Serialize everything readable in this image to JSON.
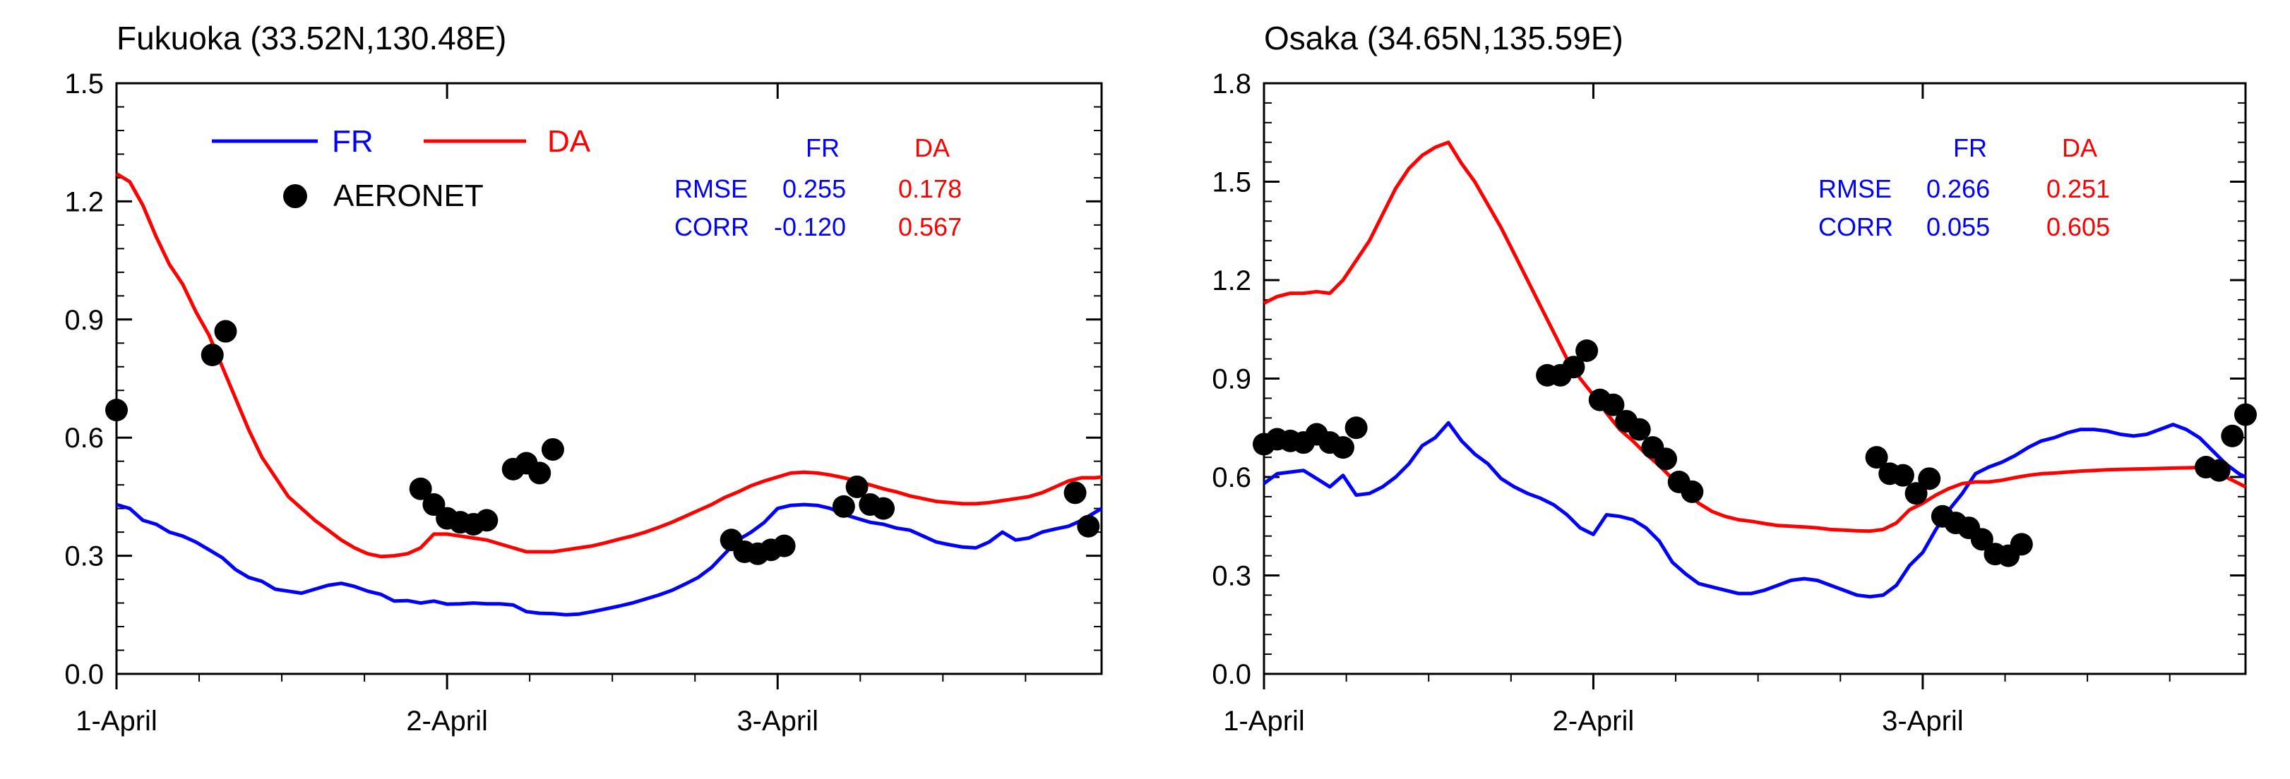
{
  "chart_data": [
    {
      "type": "line",
      "title": "Fukuoka (33.52N,130.48E)",
      "xlabel": "",
      "ylabel": "",
      "x_range": [
        1.0,
        3.98
      ],
      "ylim": [
        0.0,
        1.5
      ],
      "yticks": [
        0.0,
        0.3,
        0.6,
        0.9,
        1.2,
        1.5
      ],
      "ytick_labels": [
        "0.0",
        "0.3",
        "0.6",
        "0.9",
        "1.2",
        "1.5"
      ],
      "xticks": [
        1,
        2,
        3
      ],
      "xtick_labels": [
        "1-April",
        "2-April",
        "3-April"
      ],
      "legend": {
        "position": "top-left",
        "entries": [
          {
            "name": "FR",
            "color": "#0000ff",
            "kind": "line"
          },
          {
            "name": "DA",
            "color": "#ff0000",
            "kind": "line"
          },
          {
            "name": "AERONET",
            "color": "#000000",
            "kind": "marker"
          }
        ]
      },
      "stats": {
        "col_fr": "FR",
        "col_da": "DA",
        "rmse_label": "RMSE",
        "corr_label": "CORR",
        "rmse_fr": "0.255",
        "rmse_da": "0.178",
        "corr_fr": "-0.120",
        "corr_da": "0.567"
      },
      "series": [
        {
          "name": "FR",
          "color": "#0000ff",
          "x": [
            1.0,
            1.04,
            1.08,
            1.12,
            1.16,
            1.2,
            1.24,
            1.28,
            1.32,
            1.36,
            1.4,
            1.44,
            1.48,
            1.52,
            1.56,
            1.6,
            1.64,
            1.68,
            1.72,
            1.76,
            1.8,
            1.84,
            1.88,
            1.92,
            1.96,
            2.0,
            2.04,
            2.08,
            2.12,
            2.16,
            2.2,
            2.24,
            2.28,
            2.32,
            2.36,
            2.4,
            2.44,
            2.48,
            2.52,
            2.56,
            2.6,
            2.64,
            2.68,
            2.72,
            2.76,
            2.8,
            2.84,
            2.88,
            2.92,
            2.96,
            3.0,
            3.04,
            3.08,
            3.12,
            3.16,
            3.2,
            3.24,
            3.28,
            3.32,
            3.36,
            3.4,
            3.44,
            3.48,
            3.52,
            3.56,
            3.6,
            3.64,
            3.68,
            3.72,
            3.76,
            3.8,
            3.84,
            3.88,
            3.92,
            3.96,
            3.98
          ],
          "values": [
            0.43,
            0.42,
            0.39,
            0.38,
            0.36,
            0.35,
            0.335,
            0.315,
            0.295,
            0.265,
            0.245,
            0.235,
            0.215,
            0.21,
            0.205,
            0.215,
            0.225,
            0.23,
            0.222,
            0.21,
            0.202,
            0.185,
            0.186,
            0.18,
            0.185,
            0.177,
            0.178,
            0.18,
            0.178,
            0.178,
            0.175,
            0.158,
            0.154,
            0.153,
            0.15,
            0.152,
            0.158,
            0.165,
            0.172,
            0.18,
            0.19,
            0.2,
            0.212,
            0.228,
            0.245,
            0.27,
            0.305,
            0.34,
            0.36,
            0.385,
            0.42,
            0.428,
            0.43,
            0.428,
            0.42,
            0.405,
            0.395,
            0.385,
            0.38,
            0.37,
            0.365,
            0.35,
            0.335,
            0.328,
            0.322,
            0.32,
            0.335,
            0.36,
            0.34,
            0.345,
            0.36,
            0.368,
            0.375,
            0.39,
            0.41,
            0.42
          ]
        },
        {
          "name": "DA",
          "color": "#ff0000",
          "x": [
            1.0,
            1.04,
            1.08,
            1.12,
            1.16,
            1.2,
            1.24,
            1.28,
            1.32,
            1.36,
            1.4,
            1.44,
            1.48,
            1.52,
            1.56,
            1.6,
            1.64,
            1.68,
            1.72,
            1.76,
            1.8,
            1.84,
            1.88,
            1.92,
            1.96,
            2.0,
            2.04,
            2.08,
            2.12,
            2.16,
            2.2,
            2.24,
            2.28,
            2.32,
            2.36,
            2.4,
            2.44,
            2.48,
            2.52,
            2.56,
            2.6,
            2.64,
            2.68,
            2.72,
            2.76,
            2.8,
            2.84,
            2.88,
            2.92,
            2.96,
            3.0,
            3.04,
            3.08,
            3.12,
            3.16,
            3.2,
            3.24,
            3.28,
            3.32,
            3.36,
            3.4,
            3.44,
            3.48,
            3.52,
            3.56,
            3.6,
            3.64,
            3.68,
            3.72,
            3.76,
            3.8,
            3.84,
            3.88,
            3.92,
            3.96,
            3.98
          ],
          "values": [
            1.27,
            1.25,
            1.19,
            1.11,
            1.04,
            0.99,
            0.92,
            0.86,
            0.78,
            0.7,
            0.62,
            0.55,
            0.5,
            0.45,
            0.42,
            0.39,
            0.365,
            0.34,
            0.32,
            0.305,
            0.298,
            0.3,
            0.305,
            0.32,
            0.355,
            0.355,
            0.35,
            0.345,
            0.34,
            0.33,
            0.32,
            0.31,
            0.31,
            0.31,
            0.315,
            0.32,
            0.325,
            0.333,
            0.342,
            0.35,
            0.36,
            0.372,
            0.385,
            0.4,
            0.415,
            0.43,
            0.448,
            0.462,
            0.478,
            0.49,
            0.5,
            0.51,
            0.512,
            0.51,
            0.505,
            0.498,
            0.49,
            0.48,
            0.47,
            0.462,
            0.452,
            0.445,
            0.438,
            0.435,
            0.432,
            0.432,
            0.435,
            0.44,
            0.445,
            0.45,
            0.46,
            0.475,
            0.49,
            0.498,
            0.498,
            0.5
          ]
        }
      ],
      "markers": {
        "name": "AERONET",
        "color": "#000000",
        "x": [
          1.0,
          1.29,
          1.33,
          1.92,
          1.96,
          2.0,
          2.04,
          2.08,
          2.12,
          2.2,
          2.24,
          2.28,
          2.32,
          2.86,
          2.9,
          2.94,
          2.98,
          3.02,
          3.2,
          3.24,
          3.28,
          3.32,
          3.9,
          3.94
        ],
        "values": [
          0.67,
          0.81,
          0.87,
          0.47,
          0.43,
          0.395,
          0.385,
          0.38,
          0.39,
          0.52,
          0.535,
          0.51,
          0.57,
          0.34,
          0.31,
          0.305,
          0.315,
          0.325,
          0.425,
          0.475,
          0.43,
          0.42,
          0.46,
          0.375
        ]
      }
    },
    {
      "type": "line",
      "title": "Osaka (34.65N,135.59E)",
      "xlabel": "",
      "ylabel": "",
      "x_range": [
        1.0,
        3.98
      ],
      "ylim": [
        0.0,
        1.8
      ],
      "yticks": [
        0.0,
        0.3,
        0.6,
        0.9,
        1.2,
        1.5,
        1.8
      ],
      "ytick_labels": [
        "0.0",
        "0.3",
        "0.6",
        "0.9",
        "1.2",
        "1.5",
        "1.8"
      ],
      "xticks": [
        1,
        2,
        3
      ],
      "xtick_labels": [
        "1-April",
        "2-April",
        "3-April"
      ],
      "legend": null,
      "stats": {
        "col_fr": "FR",
        "col_da": "DA",
        "rmse_label": "RMSE",
        "corr_label": "CORR",
        "rmse_fr": "0.266",
        "rmse_da": "0.251",
        "corr_fr": "0.055",
        "corr_da": "0.605"
      },
      "series": [
        {
          "name": "FR",
          "color": "#0000ff",
          "x": [
            1.0,
            1.04,
            1.08,
            1.12,
            1.16,
            1.2,
            1.24,
            1.28,
            1.32,
            1.36,
            1.4,
            1.44,
            1.48,
            1.52,
            1.56,
            1.6,
            1.64,
            1.68,
            1.72,
            1.76,
            1.8,
            1.84,
            1.88,
            1.92,
            1.96,
            2.0,
            2.04,
            2.08,
            2.12,
            2.16,
            2.2,
            2.24,
            2.28,
            2.32,
            2.36,
            2.4,
            2.44,
            2.48,
            2.52,
            2.56,
            2.6,
            2.64,
            2.68,
            2.72,
            2.76,
            2.8,
            2.84,
            2.88,
            2.92,
            2.96,
            3.0,
            3.04,
            3.08,
            3.12,
            3.16,
            3.2,
            3.24,
            3.28,
            3.32,
            3.36,
            3.4,
            3.44,
            3.48,
            3.52,
            3.56,
            3.6,
            3.64,
            3.68,
            3.72,
            3.76,
            3.8,
            3.84,
            3.88,
            3.92,
            3.96,
            3.98
          ],
          "values": [
            0.58,
            0.61,
            0.615,
            0.62,
            0.595,
            0.57,
            0.605,
            0.545,
            0.55,
            0.57,
            0.6,
            0.64,
            0.695,
            0.72,
            0.765,
            0.71,
            0.67,
            0.64,
            0.595,
            0.57,
            0.55,
            0.535,
            0.515,
            0.485,
            0.445,
            0.425,
            0.485,
            0.48,
            0.47,
            0.445,
            0.405,
            0.34,
            0.305,
            0.275,
            0.265,
            0.255,
            0.245,
            0.245,
            0.255,
            0.27,
            0.285,
            0.29,
            0.285,
            0.27,
            0.255,
            0.24,
            0.235,
            0.24,
            0.27,
            0.33,
            0.37,
            0.44,
            0.5,
            0.55,
            0.61,
            0.63,
            0.645,
            0.665,
            0.69,
            0.71,
            0.72,
            0.735,
            0.745,
            0.745,
            0.74,
            0.73,
            0.725,
            0.73,
            0.745,
            0.76,
            0.745,
            0.72,
            0.68,
            0.64,
            0.61,
            0.6
          ]
        },
        {
          "name": "DA",
          "color": "#ff0000",
          "x": [
            1.0,
            1.04,
            1.08,
            1.12,
            1.16,
            1.2,
            1.24,
            1.28,
            1.32,
            1.36,
            1.4,
            1.44,
            1.48,
            1.52,
            1.56,
            1.6,
            1.64,
            1.68,
            1.72,
            1.76,
            1.8,
            1.84,
            1.88,
            1.92,
            1.96,
            2.0,
            2.04,
            2.08,
            2.12,
            2.16,
            2.2,
            2.24,
            2.28,
            2.32,
            2.36,
            2.4,
            2.44,
            2.48,
            2.52,
            2.56,
            2.6,
            2.64,
            2.68,
            2.72,
            2.76,
            2.8,
            2.84,
            2.88,
            2.92,
            2.96,
            3.0,
            3.04,
            3.08,
            3.12,
            3.16,
            3.2,
            3.24,
            3.28,
            3.32,
            3.36,
            3.4,
            3.44,
            3.48,
            3.52,
            3.56,
            3.6,
            3.64,
            3.68,
            3.72,
            3.76,
            3.8,
            3.84,
            3.88,
            3.92,
            3.96,
            3.98
          ],
          "values": [
            1.13,
            1.15,
            1.16,
            1.16,
            1.165,
            1.16,
            1.2,
            1.26,
            1.32,
            1.4,
            1.48,
            1.54,
            1.58,
            1.605,
            1.62,
            1.555,
            1.5,
            1.43,
            1.36,
            1.28,
            1.2,
            1.12,
            1.04,
            0.96,
            0.9,
            0.85,
            0.795,
            0.745,
            0.71,
            0.67,
            0.635,
            0.595,
            0.555,
            0.52,
            0.495,
            0.48,
            0.47,
            0.465,
            0.458,
            0.452,
            0.45,
            0.448,
            0.445,
            0.44,
            0.438,
            0.436,
            0.435,
            0.44,
            0.46,
            0.5,
            0.52,
            0.545,
            0.565,
            0.58,
            0.585,
            0.585,
            0.59,
            0.598,
            0.605,
            0.61,
            0.612,
            0.615,
            0.618,
            0.62,
            0.622,
            0.623,
            0.624,
            0.625,
            0.626,
            0.627,
            0.628,
            0.629,
            0.625,
            0.6,
            0.58,
            0.57
          ]
        }
      ],
      "markers": {
        "name": "AERONET",
        "color": "#000000",
        "x": [
          1.0,
          1.04,
          1.08,
          1.12,
          1.16,
          1.2,
          1.24,
          1.28,
          1.86,
          1.9,
          1.94,
          1.98,
          2.02,
          2.06,
          2.1,
          2.14,
          2.18,
          2.22,
          2.26,
          2.3,
          2.86,
          2.9,
          2.94,
          2.98,
          3.02,
          3.06,
          3.1,
          3.14,
          3.18,
          3.22,
          3.26,
          3.3,
          3.86,
          3.9,
          3.94,
          3.98
        ],
        "values": [
          0.7,
          0.715,
          0.71,
          0.705,
          0.73,
          0.705,
          0.69,
          0.75,
          0.91,
          0.91,
          0.935,
          0.985,
          0.835,
          0.82,
          0.77,
          0.745,
          0.69,
          0.655,
          0.585,
          0.555,
          0.66,
          0.61,
          0.605,
          0.55,
          0.595,
          0.48,
          0.46,
          0.445,
          0.41,
          0.365,
          0.36,
          0.395,
          0.63,
          0.62,
          0.725,
          0.79
        ]
      }
    }
  ]
}
